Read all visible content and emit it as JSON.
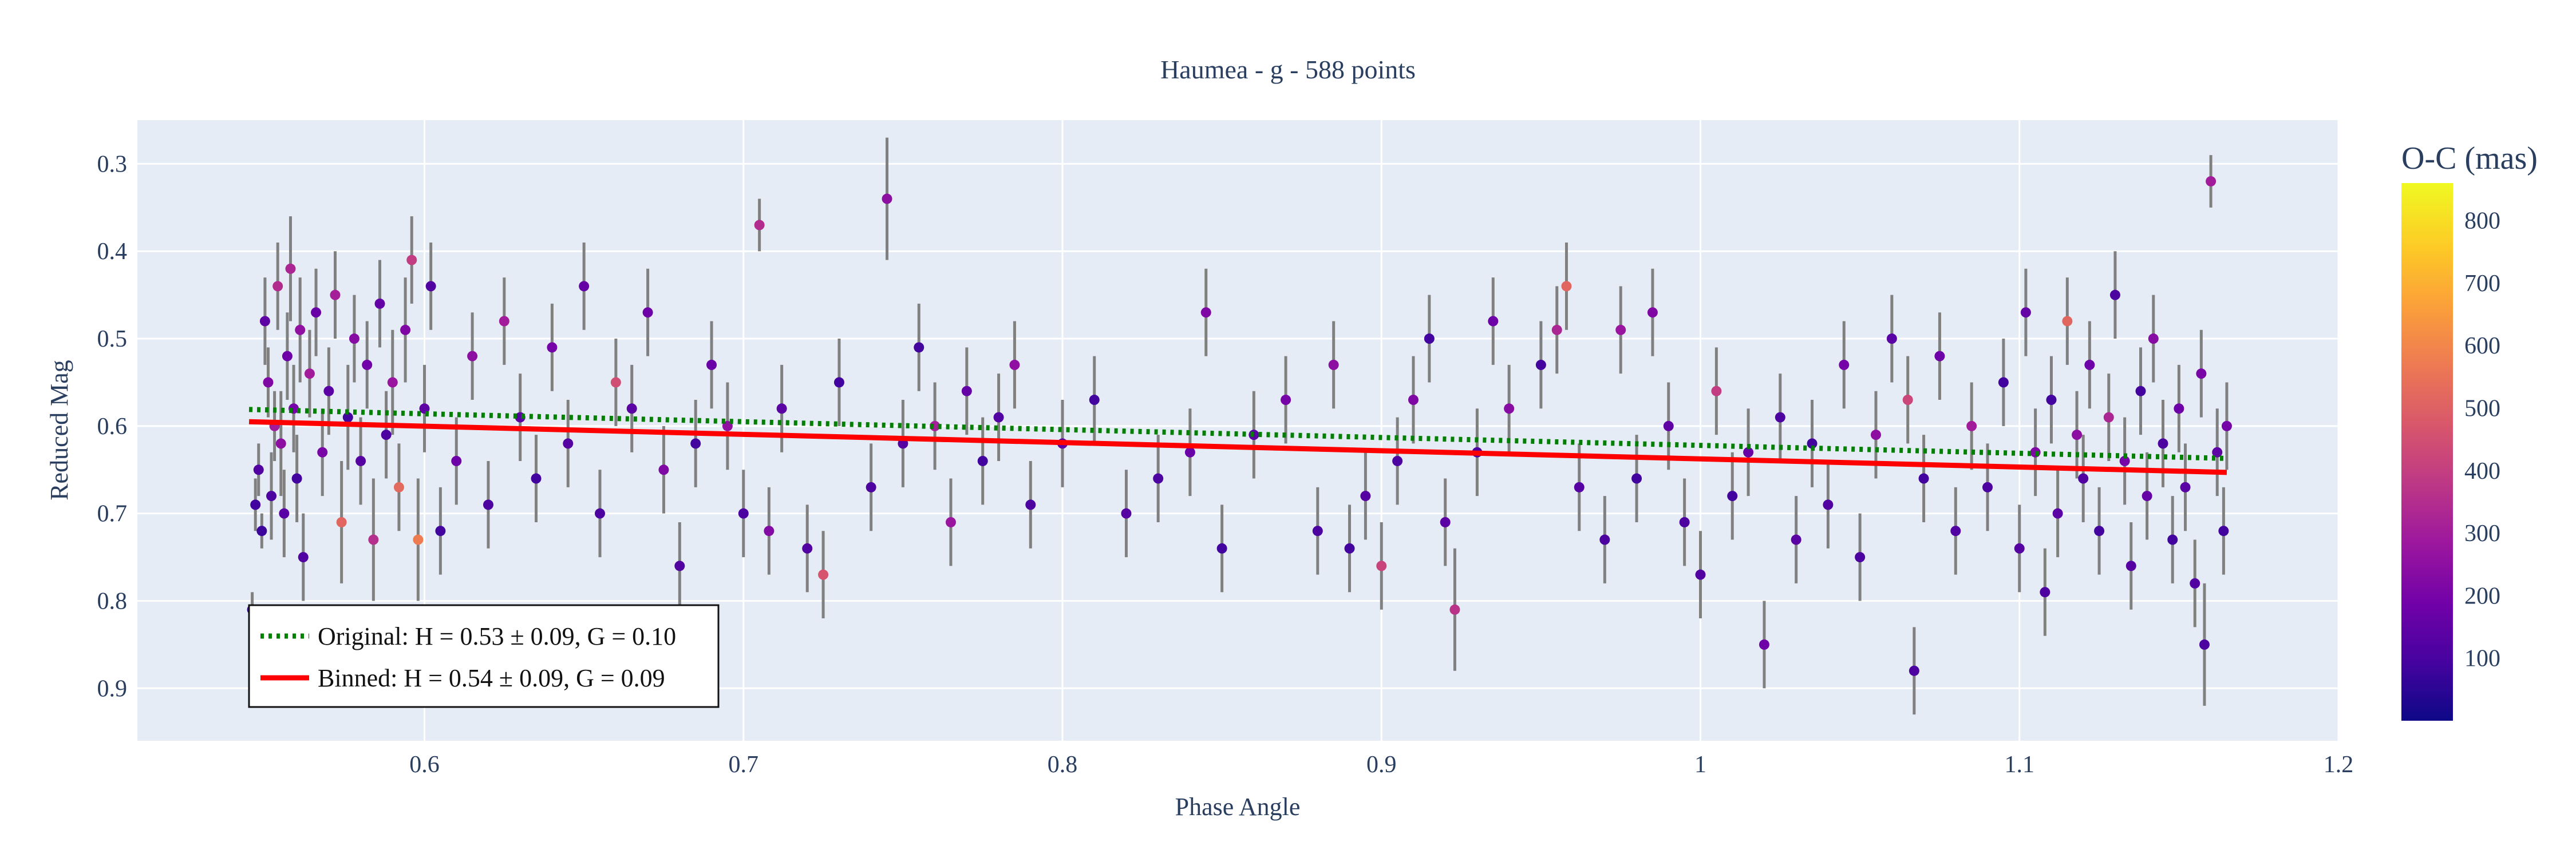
{
  "chart_data": {
    "type": "scatter",
    "title": "Haumea - g - 588 points",
    "xlabel": "Phase Angle",
    "ylabel": "Reduced Mag",
    "xlim": [
      0.51,
      1.2
    ],
    "ylim": [
      0.96,
      0.25
    ],
    "y_reversed": true,
    "grid": true,
    "x_ticks": [
      "0.6",
      "0.7",
      "0.8",
      "0.9",
      "1",
      "1.1",
      "1.2"
    ],
    "y_ticks": [
      "0.3",
      "0.4",
      "0.5",
      "0.6",
      "0.7",
      "0.8",
      "0.9"
    ],
    "legend_position": "bottom-left",
    "series": [
      {
        "name": "Original: H = 0.53 ± 0.09, G = 0.10",
        "kind": "line",
        "style": "dotted",
        "color": "#008000",
        "x": [
          0.545,
          1.165
        ],
        "y": [
          0.581,
          0.637
        ]
      },
      {
        "name": "Binned: H = 0.54 ± 0.09, G = 0.09",
        "kind": "line",
        "style": "solid",
        "color": "#ff0000",
        "x": [
          0.545,
          1.165
        ],
        "y": [
          0.595,
          0.653
        ]
      },
      {
        "name": "",
        "kind": "points",
        "note": "O-C colored measurements with error bars",
        "points": [
          [
            0.546,
            0.81,
            0.02,
            60
          ],
          [
            0.547,
            0.69,
            0.03,
            90
          ],
          [
            0.548,
            0.65,
            0.03,
            120
          ],
          [
            0.549,
            0.72,
            0.02,
            80
          ],
          [
            0.55,
            0.48,
            0.05,
            150
          ],
          [
            0.551,
            0.55,
            0.04,
            220
          ],
          [
            0.552,
            0.68,
            0.05,
            110
          ],
          [
            0.553,
            0.6,
            0.04,
            300
          ],
          [
            0.554,
            0.44,
            0.05,
            350
          ],
          [
            0.555,
            0.62,
            0.06,
            250
          ],
          [
            0.556,
            0.7,
            0.05,
            140
          ],
          [
            0.557,
            0.52,
            0.05,
            180
          ],
          [
            0.558,
            0.42,
            0.06,
            330
          ],
          [
            0.559,
            0.58,
            0.05,
            200
          ],
          [
            0.56,
            0.66,
            0.05,
            90
          ],
          [
            0.561,
            0.49,
            0.06,
            260
          ],
          [
            0.562,
            0.75,
            0.05,
            120
          ],
          [
            0.564,
            0.54,
            0.05,
            300
          ],
          [
            0.566,
            0.47,
            0.05,
            170
          ],
          [
            0.568,
            0.63,
            0.05,
            210
          ],
          [
            0.57,
            0.56,
            0.05,
            140
          ],
          [
            0.572,
            0.45,
            0.05,
            310
          ],
          [
            0.574,
            0.71,
            0.07,
            520
          ],
          [
            0.576,
            0.59,
            0.06,
            90
          ],
          [
            0.578,
            0.5,
            0.05,
            240
          ],
          [
            0.58,
            0.64,
            0.05,
            130
          ],
          [
            0.582,
            0.53,
            0.05,
            190
          ],
          [
            0.584,
            0.73,
            0.07,
            360
          ],
          [
            0.586,
            0.46,
            0.05,
            160
          ],
          [
            0.588,
            0.61,
            0.05,
            110
          ],
          [
            0.59,
            0.55,
            0.06,
            280
          ],
          [
            0.592,
            0.67,
            0.05,
            530
          ],
          [
            0.594,
            0.49,
            0.06,
            220
          ],
          [
            0.596,
            0.41,
            0.05,
            400
          ],
          [
            0.598,
            0.73,
            0.07,
            580
          ],
          [
            0.6,
            0.58,
            0.05,
            150
          ],
          [
            0.602,
            0.44,
            0.05,
            120
          ],
          [
            0.605,
            0.72,
            0.05,
            90
          ],
          [
            0.61,
            0.64,
            0.05,
            180
          ],
          [
            0.615,
            0.52,
            0.05,
            250
          ],
          [
            0.62,
            0.69,
            0.05,
            110
          ],
          [
            0.625,
            0.48,
            0.05,
            300
          ],
          [
            0.63,
            0.59,
            0.05,
            140
          ],
          [
            0.635,
            0.66,
            0.05,
            90
          ],
          [
            0.64,
            0.51,
            0.05,
            200
          ],
          [
            0.645,
            0.62,
            0.05,
            130
          ],
          [
            0.65,
            0.44,
            0.05,
            160
          ],
          [
            0.655,
            0.7,
            0.05,
            110
          ],
          [
            0.66,
            0.55,
            0.05,
            450
          ],
          [
            0.665,
            0.58,
            0.05,
            140
          ],
          [
            0.67,
            0.47,
            0.05,
            180
          ],
          [
            0.675,
            0.65,
            0.05,
            220
          ],
          [
            0.68,
            0.76,
            0.05,
            120
          ],
          [
            0.685,
            0.62,
            0.05,
            90
          ],
          [
            0.69,
            0.53,
            0.05,
            170
          ],
          [
            0.695,
            0.6,
            0.05,
            260
          ],
          [
            0.7,
            0.7,
            0.05,
            110
          ],
          [
            0.705,
            0.37,
            0.03,
            350
          ],
          [
            0.708,
            0.72,
            0.05,
            230
          ],
          [
            0.712,
            0.58,
            0.05,
            140
          ],
          [
            0.72,
            0.74,
            0.05,
            120
          ],
          [
            0.725,
            0.77,
            0.05,
            470
          ],
          [
            0.73,
            0.55,
            0.05,
            90
          ],
          [
            0.74,
            0.67,
            0.05,
            110
          ],
          [
            0.745,
            0.34,
            0.07,
            250
          ],
          [
            0.75,
            0.62,
            0.05,
            130
          ],
          [
            0.755,
            0.51,
            0.05,
            90
          ],
          [
            0.76,
            0.6,
            0.05,
            310
          ],
          [
            0.765,
            0.71,
            0.05,
            280
          ],
          [
            0.77,
            0.56,
            0.05,
            160
          ],
          [
            0.775,
            0.64,
            0.05,
            90
          ],
          [
            0.78,
            0.59,
            0.05,
            120
          ],
          [
            0.785,
            0.53,
            0.05,
            260
          ],
          [
            0.79,
            0.69,
            0.05,
            110
          ],
          [
            0.8,
            0.62,
            0.05,
            150
          ],
          [
            0.81,
            0.57,
            0.05,
            90
          ],
          [
            0.82,
            0.7,
            0.05,
            130
          ],
          [
            0.83,
            0.66,
            0.05,
            110
          ],
          [
            0.84,
            0.63,
            0.05,
            170
          ],
          [
            0.845,
            0.47,
            0.05,
            220
          ],
          [
            0.85,
            0.74,
            0.05,
            90
          ],
          [
            0.86,
            0.61,
            0.05,
            140
          ],
          [
            0.87,
            0.57,
            0.05,
            200
          ],
          [
            0.88,
            0.72,
            0.05,
            110
          ],
          [
            0.885,
            0.53,
            0.05,
            250
          ],
          [
            0.89,
            0.74,
            0.05,
            90
          ],
          [
            0.895,
            0.68,
            0.05,
            130
          ],
          [
            0.9,
            0.76,
            0.05,
            420
          ],
          [
            0.905,
            0.64,
            0.05,
            110
          ],
          [
            0.91,
            0.57,
            0.05,
            220
          ],
          [
            0.915,
            0.5,
            0.05,
            90
          ],
          [
            0.92,
            0.71,
            0.05,
            140
          ],
          [
            0.923,
            0.81,
            0.07,
            370
          ],
          [
            0.93,
            0.63,
            0.05,
            110
          ],
          [
            0.935,
            0.48,
            0.05,
            180
          ],
          [
            0.94,
            0.58,
            0.05,
            240
          ],
          [
            0.95,
            0.53,
            0.05,
            90
          ],
          [
            0.955,
            0.49,
            0.05,
            330
          ],
          [
            0.958,
            0.44,
            0.05,
            520
          ],
          [
            0.962,
            0.67,
            0.05,
            130
          ],
          [
            0.97,
            0.73,
            0.05,
            110
          ],
          [
            0.975,
            0.49,
            0.05,
            280
          ],
          [
            0.98,
            0.66,
            0.05,
            90
          ],
          [
            0.985,
            0.47,
            0.05,
            220
          ],
          [
            0.99,
            0.6,
            0.05,
            150
          ],
          [
            0.995,
            0.71,
            0.05,
            110
          ],
          [
            1.0,
            0.77,
            0.05,
            120
          ],
          [
            1.005,
            0.56,
            0.05,
            400
          ],
          [
            1.01,
            0.68,
            0.05,
            90
          ],
          [
            1.015,
            0.63,
            0.05,
            170
          ],
          [
            1.02,
            0.85,
            0.05,
            180
          ],
          [
            1.025,
            0.59,
            0.05,
            110
          ],
          [
            1.03,
            0.73,
            0.05,
            140
          ],
          [
            1.035,
            0.62,
            0.05,
            90
          ],
          [
            1.04,
            0.69,
            0.05,
            120
          ],
          [
            1.045,
            0.53,
            0.05,
            200
          ],
          [
            1.05,
            0.75,
            0.05,
            110
          ],
          [
            1.055,
            0.61,
            0.05,
            250
          ],
          [
            1.06,
            0.5,
            0.05,
            140
          ],
          [
            1.065,
            0.57,
            0.05,
            430
          ],
          [
            1.067,
            0.88,
            0.05,
            110
          ],
          [
            1.07,
            0.66,
            0.05,
            90
          ],
          [
            1.075,
            0.52,
            0.05,
            180
          ],
          [
            1.08,
            0.72,
            0.05,
            120
          ],
          [
            1.085,
            0.6,
            0.05,
            300
          ],
          [
            1.09,
            0.67,
            0.05,
            110
          ],
          [
            1.095,
            0.55,
            0.05,
            90
          ],
          [
            1.1,
            0.74,
            0.05,
            130
          ],
          [
            1.102,
            0.47,
            0.05,
            160
          ],
          [
            1.105,
            0.63,
            0.05,
            220
          ],
          [
            1.108,
            0.79,
            0.05,
            110
          ],
          [
            1.11,
            0.57,
            0.05,
            90
          ],
          [
            1.112,
            0.7,
            0.05,
            140
          ],
          [
            1.115,
            0.48,
            0.05,
            520
          ],
          [
            1.118,
            0.61,
            0.05,
            250
          ],
          [
            1.12,
            0.66,
            0.05,
            120
          ],
          [
            1.122,
            0.53,
            0.05,
            180
          ],
          [
            1.125,
            0.72,
            0.05,
            90
          ],
          [
            1.128,
            0.59,
            0.05,
            330
          ],
          [
            1.13,
            0.45,
            0.05,
            110
          ],
          [
            1.133,
            0.64,
            0.05,
            200
          ],
          [
            1.135,
            0.76,
            0.05,
            130
          ],
          [
            1.138,
            0.56,
            0.05,
            90
          ],
          [
            1.14,
            0.68,
            0.05,
            160
          ],
          [
            1.142,
            0.5,
            0.05,
            240
          ],
          [
            1.145,
            0.62,
            0.05,
            110
          ],
          [
            1.148,
            0.73,
            0.05,
            90
          ],
          [
            1.15,
            0.58,
            0.05,
            180
          ],
          [
            1.152,
            0.67,
            0.05,
            140
          ],
          [
            1.155,
            0.78,
            0.05,
            120
          ],
          [
            1.157,
            0.54,
            0.05,
            210
          ],
          [
            1.158,
            0.85,
            0.07,
            110
          ],
          [
            1.16,
            0.32,
            0.03,
            300
          ],
          [
            1.162,
            0.63,
            0.05,
            150
          ],
          [
            1.164,
            0.72,
            0.05,
            90
          ],
          [
            1.165,
            0.6,
            0.05,
            200
          ]
        ]
      }
    ],
    "colorbar": {
      "title": "O-C (mas)",
      "min": 0,
      "max": 860,
      "ticks": [
        "100",
        "200",
        "300",
        "400",
        "500",
        "600",
        "700",
        "800"
      ],
      "colorscale": [
        "#0d0887",
        "#46039f",
        "#7201a8",
        "#9c179e",
        "#bd3786",
        "#d8576b",
        "#ed7953",
        "#fb9f3a",
        "#fdca26",
        "#f0f921"
      ]
    }
  }
}
